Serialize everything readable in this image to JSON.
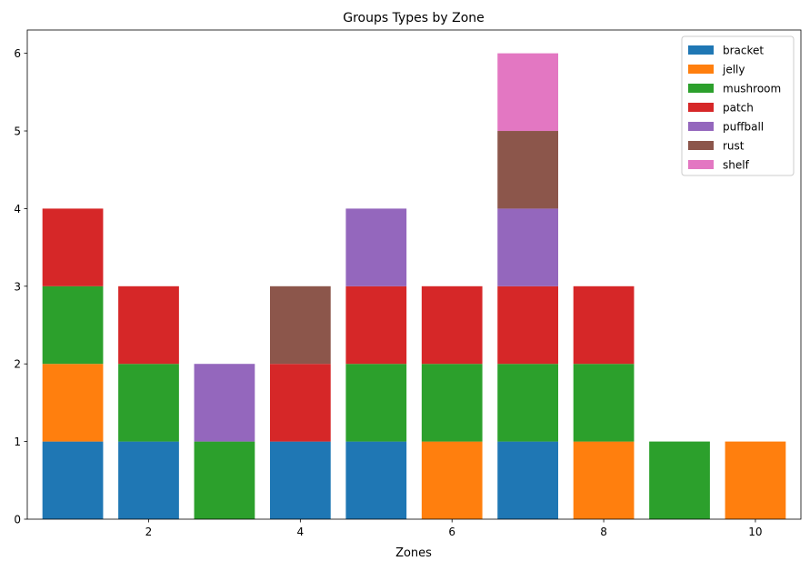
{
  "chart_data": {
    "type": "bar",
    "stacked": true,
    "title": "Groups Types by Zone",
    "xlabel": "Zones",
    "ylabel": "",
    "x": [
      1,
      2,
      3,
      4,
      5,
      6,
      7,
      8,
      9,
      10
    ],
    "xlim": [
      0.4,
      10.6
    ],
    "ylim": [
      0,
      6.3
    ],
    "xticks": [
      2,
      4,
      6,
      8,
      10
    ],
    "yticks": [
      0,
      1,
      2,
      3,
      4,
      5,
      6
    ],
    "grid": false,
    "legend_position": "top-right",
    "series": [
      {
        "name": "bracket",
        "color": "#1f77b4",
        "values": [
          1,
          1,
          0,
          1,
          1,
          0,
          1,
          0,
          0,
          0
        ]
      },
      {
        "name": "jelly",
        "color": "#ff7f0e",
        "values": [
          1,
          0,
          0,
          0,
          0,
          1,
          0,
          1,
          0,
          1
        ]
      },
      {
        "name": "mushroom",
        "color": "#2ca02c",
        "values": [
          1,
          1,
          1,
          0,
          1,
          1,
          1,
          1,
          1,
          0
        ]
      },
      {
        "name": "patch",
        "color": "#d62728",
        "values": [
          1,
          1,
          0,
          1,
          1,
          1,
          1,
          1,
          0,
          0
        ]
      },
      {
        "name": "puffball",
        "color": "#9467bd",
        "values": [
          0,
          0,
          1,
          0,
          1,
          0,
          1,
          0,
          0,
          0
        ]
      },
      {
        "name": "rust",
        "color": "#8c564b",
        "values": [
          0,
          0,
          0,
          1,
          0,
          0,
          1,
          0,
          0,
          0
        ]
      },
      {
        "name": "shelf",
        "color": "#e377c2",
        "values": [
          0,
          0,
          0,
          0,
          0,
          0,
          1,
          0,
          0,
          0
        ]
      }
    ]
  }
}
